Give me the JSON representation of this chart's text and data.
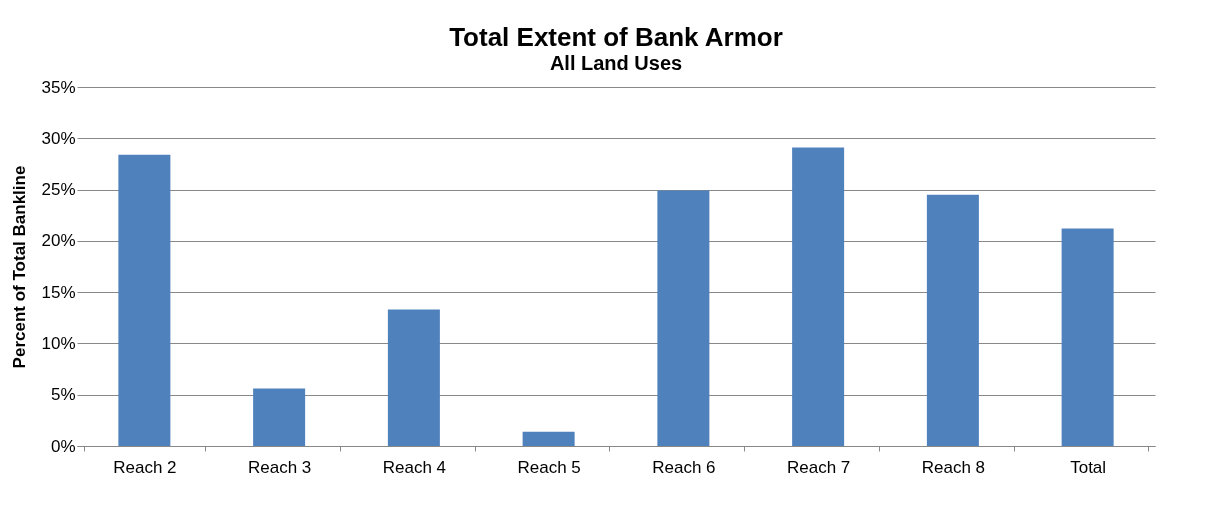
{
  "chart_data": {
    "type": "bar",
    "title": "Total Extent of Bank Armor",
    "subtitle": "All Land Uses",
    "ylabel": "Percent of Total Bankline",
    "categories": [
      "Reach 2",
      "Reach 3",
      "Reach 4",
      "Reach 5",
      "Reach 6",
      "Reach 7",
      "Reach 8",
      "Total"
    ],
    "values": [
      28.4,
      5.6,
      13.3,
      1.4,
      24.9,
      29.1,
      24.5,
      21.2
    ],
    "color": "#4f81bd",
    "ylim": [
      0,
      35
    ],
    "yticks": [
      {
        "value": 0,
        "label": "0%"
      },
      {
        "value": 5,
        "label": "5%"
      },
      {
        "value": 10,
        "label": "10%"
      },
      {
        "value": 15,
        "label": "15%"
      },
      {
        "value": 20,
        "label": "20%"
      },
      {
        "value": 25,
        "label": "25%"
      },
      {
        "value": 30,
        "label": "30%"
      },
      {
        "value": 35,
        "label": "35%"
      }
    ],
    "grid": "y"
  }
}
